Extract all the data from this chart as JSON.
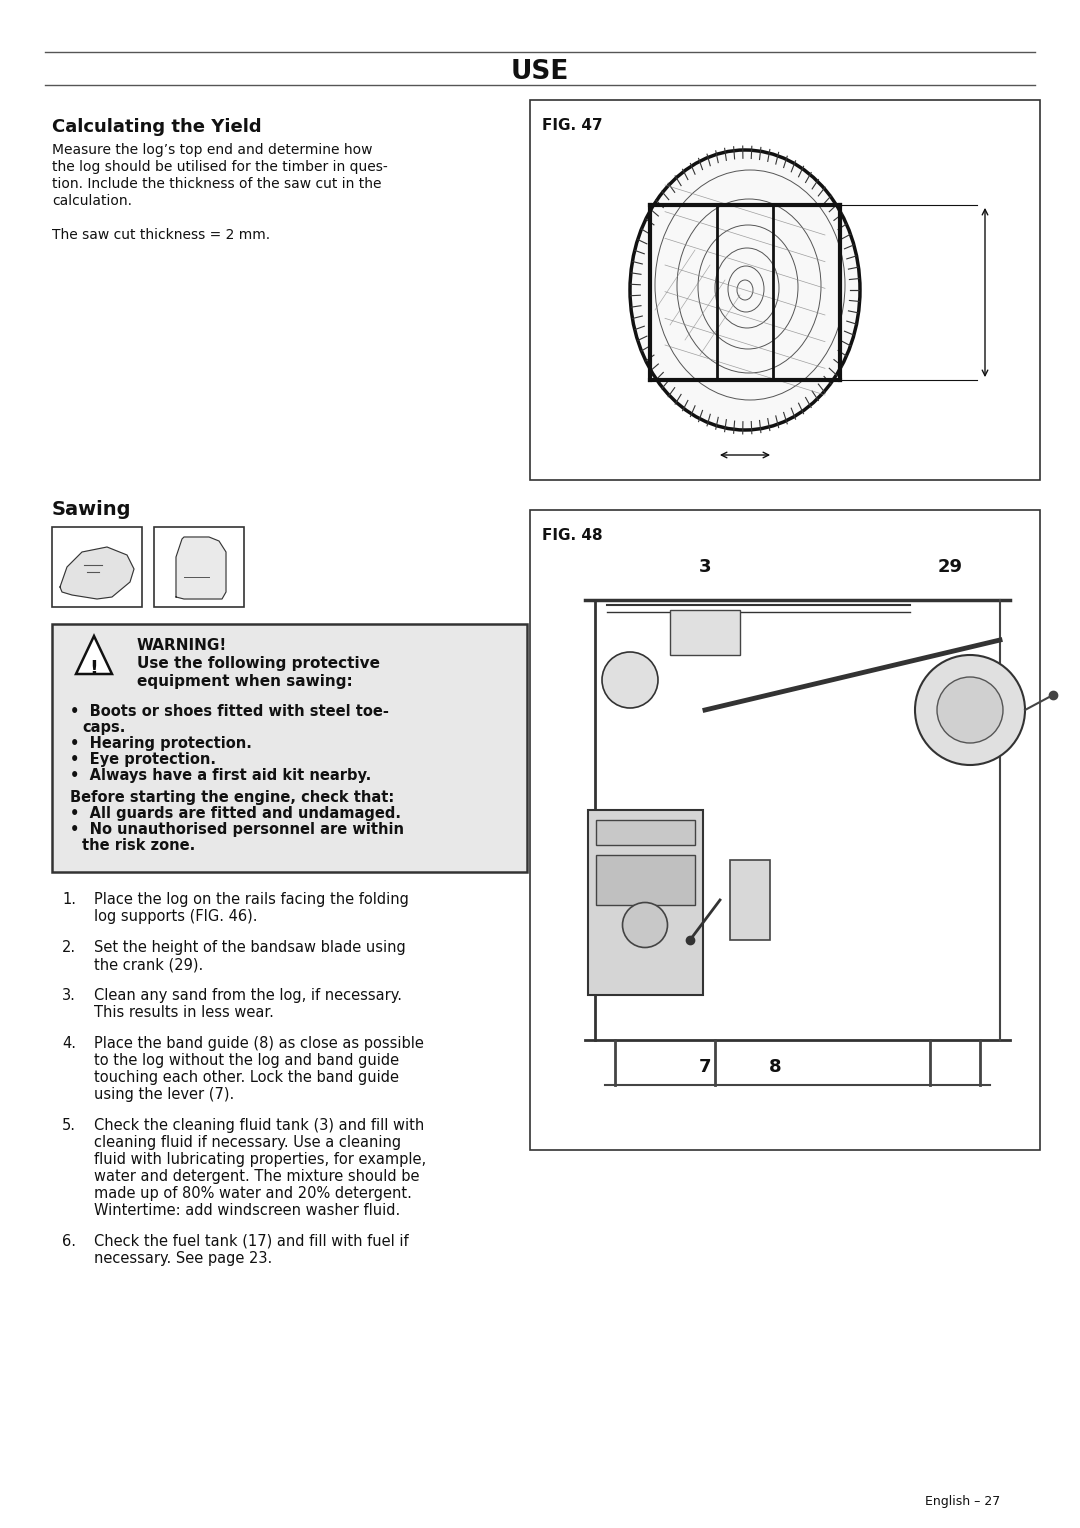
{
  "title": "USE",
  "section1_heading": "Calculating the Yield",
  "para1_lines": [
    "Measure the log’s top end and determine how",
    "the log should be utilised for the timber in ques-",
    "tion. Include the thickness of the saw cut in the",
    "calculation."
  ],
  "para2": "The saw cut thickness = 2 mm.",
  "fig47_label": "FIG. 47",
  "section2_heading": "Sawing",
  "warning_title": "WARNING!",
  "warning_line1": "Use the following protective",
  "warning_line2": "equipment when sawing:",
  "bullets": [
    "Boots or shoes fitted with steel toe-",
    "caps.",
    "Hearing protection.",
    "Eye protection.",
    "Always have a first aid kit nearby."
  ],
  "before_start": "Before starting the engine, check that:",
  "checks": [
    "All guards are fitted and undamaged.",
    "No unauthorised personnel are within",
    "the risk zone."
  ],
  "steps": [
    [
      "Place the log on the rails facing the folding",
      "log supports (FIG. 46)."
    ],
    [
      "Set the height of the bandsaw blade using",
      "the crank (29)."
    ],
    [
      "Clean any sand from the log, if necessary.",
      "This results in less wear."
    ],
    [
      "Place the band guide (8) as close as possible",
      "to the log without the log and band guide",
      "touching each other. Lock the band guide",
      "using the lever (7)."
    ],
    [
      "Check the cleaning fluid tank (3) and fill with",
      "cleaning fluid if necessary. Use a cleaning",
      "fluid with lubricating properties, for example,",
      "water and detergent. The mixture should be",
      "made up of 80% water and 20% detergent.",
      "Wintertime: add windscreen washer fluid."
    ],
    [
      "Check the fuel tank (17) and fill with fuel if",
      "necessary. See page 23."
    ]
  ],
  "fig48_label": "FIG. 48",
  "fig48_nums": [
    "3",
    "29",
    "7",
    "8"
  ],
  "footer": "English – 27",
  "bg_color": "#ffffff",
  "text_color": "#111111",
  "warn_bg": "#e8e8e8"
}
